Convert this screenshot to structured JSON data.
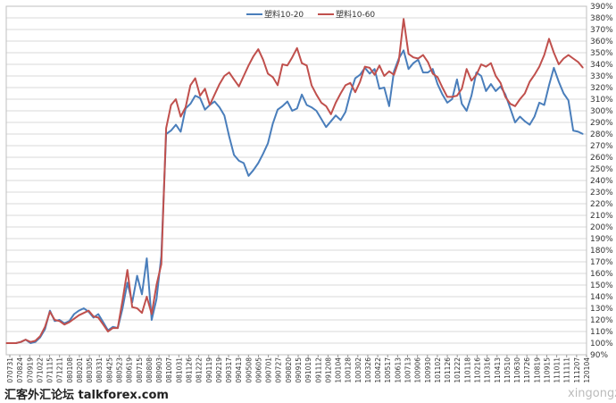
{
  "chart_data": {
    "type": "line",
    "ylim": [
      90,
      390
    ],
    "y_ticks": [
      "90%",
      "100%",
      "110%",
      "120%",
      "130%",
      "140%",
      "150%",
      "160%",
      "170%",
      "180%",
      "190%",
      "200%",
      "210%",
      "220%",
      "230%",
      "240%",
      "250%",
      "260%",
      "270%",
      "280%",
      "290%",
      "300%",
      "310%",
      "320%",
      "330%",
      "340%",
      "350%",
      "360%",
      "370%",
      "380%",
      "390%"
    ],
    "grid": true,
    "legend": "top-center",
    "x_ticks": [
      "070731",
      "070824",
      "070919",
      "071022",
      "071115",
      "071211",
      "080108",
      "080201",
      "080305",
      "080331",
      "080425",
      "080523",
      "080619",
      "080715",
      "080808",
      "080903",
      "081007",
      "081031",
      "081126",
      "081222",
      "090119",
      "090219",
      "090317",
      "090413",
      "090508",
      "090605",
      "090701",
      "090727",
      "090820",
      "090915",
      "091019",
      "091112",
      "091208",
      "100104",
      "100128",
      "100302",
      "100326",
      "100422",
      "100517",
      "100613",
      "100713",
      "100906",
      "100930",
      "101102",
      "101126",
      "101222",
      "110118",
      "110216",
      "110316",
      "110413",
      "110510",
      "110630",
      "110726",
      "110819",
      "110915",
      "111011",
      "111111",
      "111207",
      "120104"
    ],
    "series": [
      {
        "name": "塑料10-20",
        "color": "#4a7ebb",
        "values": [
          100,
          100,
          100,
          101,
          103,
          100,
          101,
          105,
          112,
          128,
          119,
          120,
          117,
          119,
          125,
          128,
          130,
          127,
          122,
          125,
          118,
          111,
          114,
          113,
          130,
          152,
          135,
          158,
          142,
          173,
          120,
          138,
          175,
          280,
          283,
          288,
          282,
          302,
          306,
          313,
          311,
          301,
          305,
          308,
          303,
          296,
          278,
          262,
          257,
          255,
          244,
          249,
          255,
          263,
          272,
          289,
          301,
          304,
          308,
          300,
          302,
          314,
          305,
          303,
          300,
          293,
          286,
          291,
          296,
          292,
          299,
          315,
          328,
          331,
          337,
          332,
          336,
          319,
          320,
          304,
          334,
          345,
          352,
          336,
          341,
          344,
          333,
          333,
          336,
          323,
          314,
          307,
          310,
          327,
          306,
          300,
          313,
          333,
          330,
          317,
          323,
          317,
          321,
          314,
          302,
          290,
          295,
          291,
          288,
          295,
          307,
          305,
          322,
          337,
          325,
          315,
          309,
          283,
          282,
          280
        ]
      },
      {
        "name": "塑料10-60",
        "color": "#c0504d",
        "values": [
          100,
          100,
          100,
          101,
          103,
          101,
          102,
          106,
          114,
          127,
          120,
          119,
          116,
          118,
          121,
          124,
          126,
          128,
          123,
          122,
          116,
          110,
          113,
          113,
          137,
          163,
          131,
          130,
          126,
          140,
          125,
          150,
          168,
          285,
          305,
          310,
          295,
          303,
          322,
          328,
          313,
          319,
          305,
          314,
          323,
          330,
          333,
          327,
          321,
          330,
          339,
          347,
          353,
          344,
          332,
          329,
          322,
          340,
          339,
          346,
          354,
          341,
          339,
          322,
          314,
          307,
          304,
          297,
          307,
          315,
          322,
          324,
          316,
          325,
          338,
          337,
          331,
          339,
          330,
          334,
          331,
          343,
          379,
          349,
          346,
          345,
          348,
          342,
          332,
          329,
          320,
          312,
          312,
          313,
          319,
          336,
          326,
          331,
          340,
          338,
          341,
          330,
          324,
          312,
          306,
          304,
          310,
          315,
          325,
          331,
          338,
          348,
          362,
          350,
          340,
          345,
          348,
          345,
          342,
          337
        ]
      }
    ]
  },
  "legend": {
    "series1": "塑料10-20",
    "series2": "塑料10-60"
  },
  "watermark": {
    "left": "汇客外汇论坛 talkforex.com",
    "right": "xingongzi"
  }
}
